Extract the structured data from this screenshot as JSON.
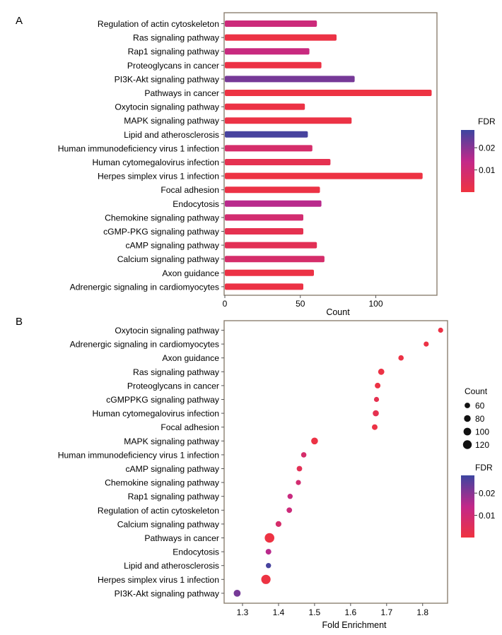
{
  "colors": {
    "fdr_low": "#ef3340",
    "fdr_mid": "#c2288a",
    "fdr_high": "#3d45a0",
    "panel_border": "#8c7f70"
  },
  "panel_a": {
    "label": "A",
    "chart_data": {
      "type": "bar",
      "orientation": "horizontal",
      "xlabel": "Count",
      "xlim": [
        0,
        140
      ],
      "xticks": [
        0,
        50,
        100
      ],
      "grid": false,
      "color_legend": {
        "title": "FDR",
        "ticks": [
          0.02,
          0.01
        ],
        "tick_labels": [
          "0.02",
          "0.01"
        ],
        "range": [
          0,
          0.028
        ],
        "placement": "right"
      },
      "categories": [
        "Regulation of actin cytoskeleton",
        "Ras signaling pathway",
        "Rap1 signaling pathway",
        "Proteoglycans in cancer",
        "PI3K-Akt signaling pathway",
        "Pathways in cancer",
        "Oxytocin signaling pathway",
        "MAPK signaling pathway",
        "Lipid and atherosclerosis",
        "Human immunodeficiency virus 1 infection",
        "Human cytomegalovirus infection",
        "Herpes simplex virus 1 infection",
        "Focal adhesion",
        "Endocytosis",
        "Chemokine signaling pathway",
        "cGMP-PKG signaling pathway",
        "cAMP signaling pathway",
        "Calcium signaling pathway",
        "Axon guidance",
        "Adrenergic signaling in cardiomyocytes"
      ],
      "values": [
        61,
        74,
        56,
        64,
        86,
        137,
        53,
        84,
        55,
        58,
        70,
        131,
        63,
        64,
        52,
        52,
        61,
        66,
        59,
        52
      ],
      "fdr": [
        0.011,
        0.001,
        0.012,
        0.001,
        0.022,
        0.0005,
        0.001,
        0.001,
        0.027,
        0.008,
        0.003,
        0.0005,
        0.001,
        0.015,
        0.009,
        0.003,
        0.004,
        0.008,
        0.001,
        0.001
      ]
    }
  },
  "panel_b": {
    "label": "B",
    "chart_data": {
      "type": "scatter",
      "xlabel": "Fold Enrichment",
      "xlim": [
        1.26,
        1.87
      ],
      "xticks": [
        1.3,
        1.4,
        1.5,
        1.6,
        1.7,
        1.8
      ],
      "grid": false,
      "size_legend": {
        "title": "Count",
        "values": [
          60,
          80,
          100,
          120
        ],
        "placement": "right"
      },
      "color_legend": {
        "title": "FDR",
        "ticks": [
          0.02,
          0.01
        ],
        "tick_labels": [
          "0.02",
          "0.01"
        ],
        "range": [
          0,
          0.028
        ],
        "placement": "right"
      },
      "categories": [
        "Oxytocin signaling pathway",
        "Adrenergic signaling in cardiomyocytes",
        "Axon guidance",
        "Ras signaling pathway",
        "Proteoglycans in cancer",
        "cGMPPKG signaling pathway",
        "Human cytomegalovirus infection",
        "Focal adhesion",
        "MAPK signaling pathway",
        "Human immunodeficiency virus 1 infection",
        "cAMP signaling pathway",
        "Chemokine signaling pathway",
        "Rap1 signaling pathway",
        "Regulation of actin cytoskeleton",
        "Calcium signaling pathway",
        "Pathways in cancer",
        "Endocytosis",
        "Lipid and atherosclerosis",
        "Herpes simplex virus 1 infection",
        "PI3K-Akt signaling pathway"
      ],
      "x": [
        1.85,
        1.81,
        1.74,
        1.685,
        1.675,
        1.672,
        1.67,
        1.667,
        1.5,
        1.47,
        1.458,
        1.455,
        1.432,
        1.43,
        1.4,
        1.375,
        1.372,
        1.372,
        1.365,
        1.285
      ],
      "count": [
        53,
        52,
        59,
        74,
        64,
        52,
        70,
        63,
        84,
        58,
        61,
        52,
        56,
        61,
        66,
        137,
        64,
        55,
        131,
        86
      ],
      "fdr": [
        0.001,
        0.001,
        0.001,
        0.001,
        0.001,
        0.003,
        0.003,
        0.001,
        0.001,
        0.008,
        0.004,
        0.009,
        0.012,
        0.011,
        0.008,
        0.0005,
        0.015,
        0.027,
        0.0005,
        0.022
      ]
    }
  }
}
